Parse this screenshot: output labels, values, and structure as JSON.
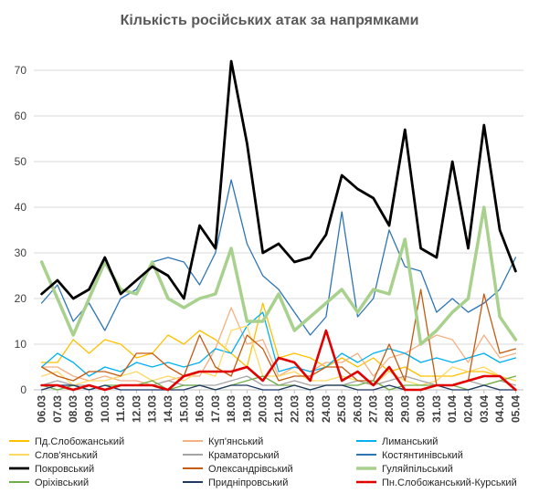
{
  "chart_data": {
    "type": "line",
    "title": "Кількість російських атак за напрямками",
    "xlabel": "",
    "ylabel": "",
    "ylim": [
      0,
      75
    ],
    "yticks": [
      0,
      10,
      20,
      30,
      40,
      50,
      60,
      70
    ],
    "grid": "horizontal",
    "legend_position": "bottom",
    "categories": [
      "06.03",
      "07.03",
      "08.03",
      "09.03",
      "10.03",
      "11.03",
      "12.03",
      "13.03",
      "14.03",
      "15.03",
      "16.03",
      "17.03",
      "18.03",
      "19.03",
      "20.03",
      "21.03",
      "22.03",
      "23.03",
      "24.03",
      "25.03",
      "26.03",
      "27.03",
      "28.03",
      "29.03",
      "30.03",
      "31.03",
      "01.04",
      "02.04",
      "03.04",
      "04.04",
      "05.04"
    ],
    "series": [
      {
        "name": "Пд.Слобожанський",
        "color": "#FFC000",
        "width": 1.3,
        "values": [
          6,
          6,
          11,
          8,
          11,
          10,
          7,
          8,
          12,
          10,
          13,
          11,
          8,
          5,
          19,
          7,
          8,
          7,
          5,
          7,
          5,
          7,
          4,
          5,
          3,
          3,
          3,
          4,
          4,
          3,
          2
        ]
      },
      {
        "name": "Куп'янський",
        "color": "#F4B183",
        "width": 1.3,
        "values": [
          5,
          5,
          3,
          2,
          3,
          2,
          2,
          1,
          2,
          3,
          3,
          9,
          18,
          10,
          11,
          3,
          5,
          4,
          6,
          6,
          8,
          3,
          7,
          8,
          10,
          12,
          11,
          6,
          12,
          7,
          8
        ]
      },
      {
        "name": "Лиманський",
        "color": "#00B0F0",
        "width": 1.3,
        "values": [
          5,
          8,
          6,
          3,
          5,
          4,
          6,
          5,
          6,
          5,
          6,
          9,
          8,
          14,
          17,
          4,
          5,
          4,
          5,
          8,
          6,
          8,
          9,
          8,
          6,
          7,
          6,
          7,
          8,
          6,
          7
        ]
      },
      {
        "name": "Слов'янський",
        "color": "#FFD966",
        "width": 1.3,
        "values": [
          3,
          4,
          1,
          2,
          2,
          3,
          4,
          2,
          3,
          2,
          4,
          3,
          13,
          14,
          3,
          3,
          4,
          2,
          2,
          3,
          2,
          1,
          4,
          2,
          1,
          2,
          5,
          4,
          5,
          3,
          2
        ]
      },
      {
        "name": "Краматорський",
        "color": "#A5A5A5",
        "width": 1.3,
        "values": [
          1,
          2,
          1,
          1,
          0,
          1,
          1,
          1,
          2,
          1,
          1,
          1,
          2,
          3,
          1,
          1,
          2,
          1,
          1,
          1,
          2,
          1,
          2,
          3,
          2,
          1,
          1,
          2,
          1,
          2,
          1
        ]
      },
      {
        "name": "Костянтинівський",
        "color": "#2E75B6",
        "width": 1.3,
        "values": [
          19,
          23,
          15,
          19,
          13,
          20,
          22,
          28,
          29,
          28,
          23,
          30,
          46,
          32,
          25,
          22,
          17,
          12,
          16,
          39,
          16,
          20,
          35,
          27,
          26,
          17,
          20,
          17,
          19,
          22,
          29
        ]
      },
      {
        "name": "Покровський",
        "color": "#000000",
        "width": 2.8,
        "values": [
          21,
          24,
          20,
          22,
          29,
          21,
          24,
          27,
          25,
          20,
          36,
          31,
          72,
          54,
          30,
          32,
          28,
          29,
          34,
          47,
          44,
          42,
          36,
          57,
          31,
          29,
          50,
          31,
          58,
          35,
          26
        ]
      },
      {
        "name": "Олександрівський",
        "color": "#C55A11",
        "width": 1.3,
        "values": [
          5,
          3,
          2,
          4,
          4,
          3,
          8,
          8,
          5,
          3,
          12,
          5,
          3,
          12,
          9,
          2,
          3,
          3,
          5,
          5,
          2,
          2,
          10,
          2,
          22,
          1,
          1,
          2,
          21,
          8,
          9
        ]
      },
      {
        "name": "Гуляйпільський",
        "color": "#A9D18E",
        "width": 3.5,
        "values": [
          28,
          20,
          12,
          20,
          28,
          22,
          21,
          28,
          20,
          18,
          20,
          21,
          31,
          15,
          15,
          21,
          13,
          16,
          19,
          22,
          17,
          22,
          21,
          33,
          10,
          13,
          17,
          20,
          40,
          16,
          11
        ]
      },
      {
        "name": "Оріхівський",
        "color": "#70AD47",
        "width": 1.3,
        "values": [
          1,
          0,
          1,
          0,
          1,
          1,
          1,
          2,
          0,
          1,
          1,
          0,
          1,
          2,
          3,
          1,
          1,
          0,
          1,
          1,
          1,
          2,
          0,
          1,
          1,
          1,
          1,
          0,
          1,
          2,
          3
        ]
      },
      {
        "name": "Придніпровський",
        "color": "#1F3864",
        "width": 1.3,
        "values": [
          0,
          1,
          1,
          0,
          1,
          0,
          0,
          0,
          0,
          0,
          1,
          0,
          1,
          1,
          0,
          0,
          1,
          0,
          1,
          1,
          0,
          0,
          1,
          0,
          0,
          1,
          0,
          0,
          1,
          0,
          0
        ]
      },
      {
        "name": "Пн.Слобожанський-Курський",
        "color": "#E00000",
        "width": 2.6,
        "values": [
          1,
          1,
          0,
          1,
          0,
          1,
          1,
          1,
          0,
          3,
          4,
          4,
          4,
          5,
          2,
          7,
          6,
          2,
          13,
          2,
          4,
          1,
          5,
          0,
          0,
          1,
          1,
          2,
          3,
          3,
          0
        ]
      }
    ]
  }
}
